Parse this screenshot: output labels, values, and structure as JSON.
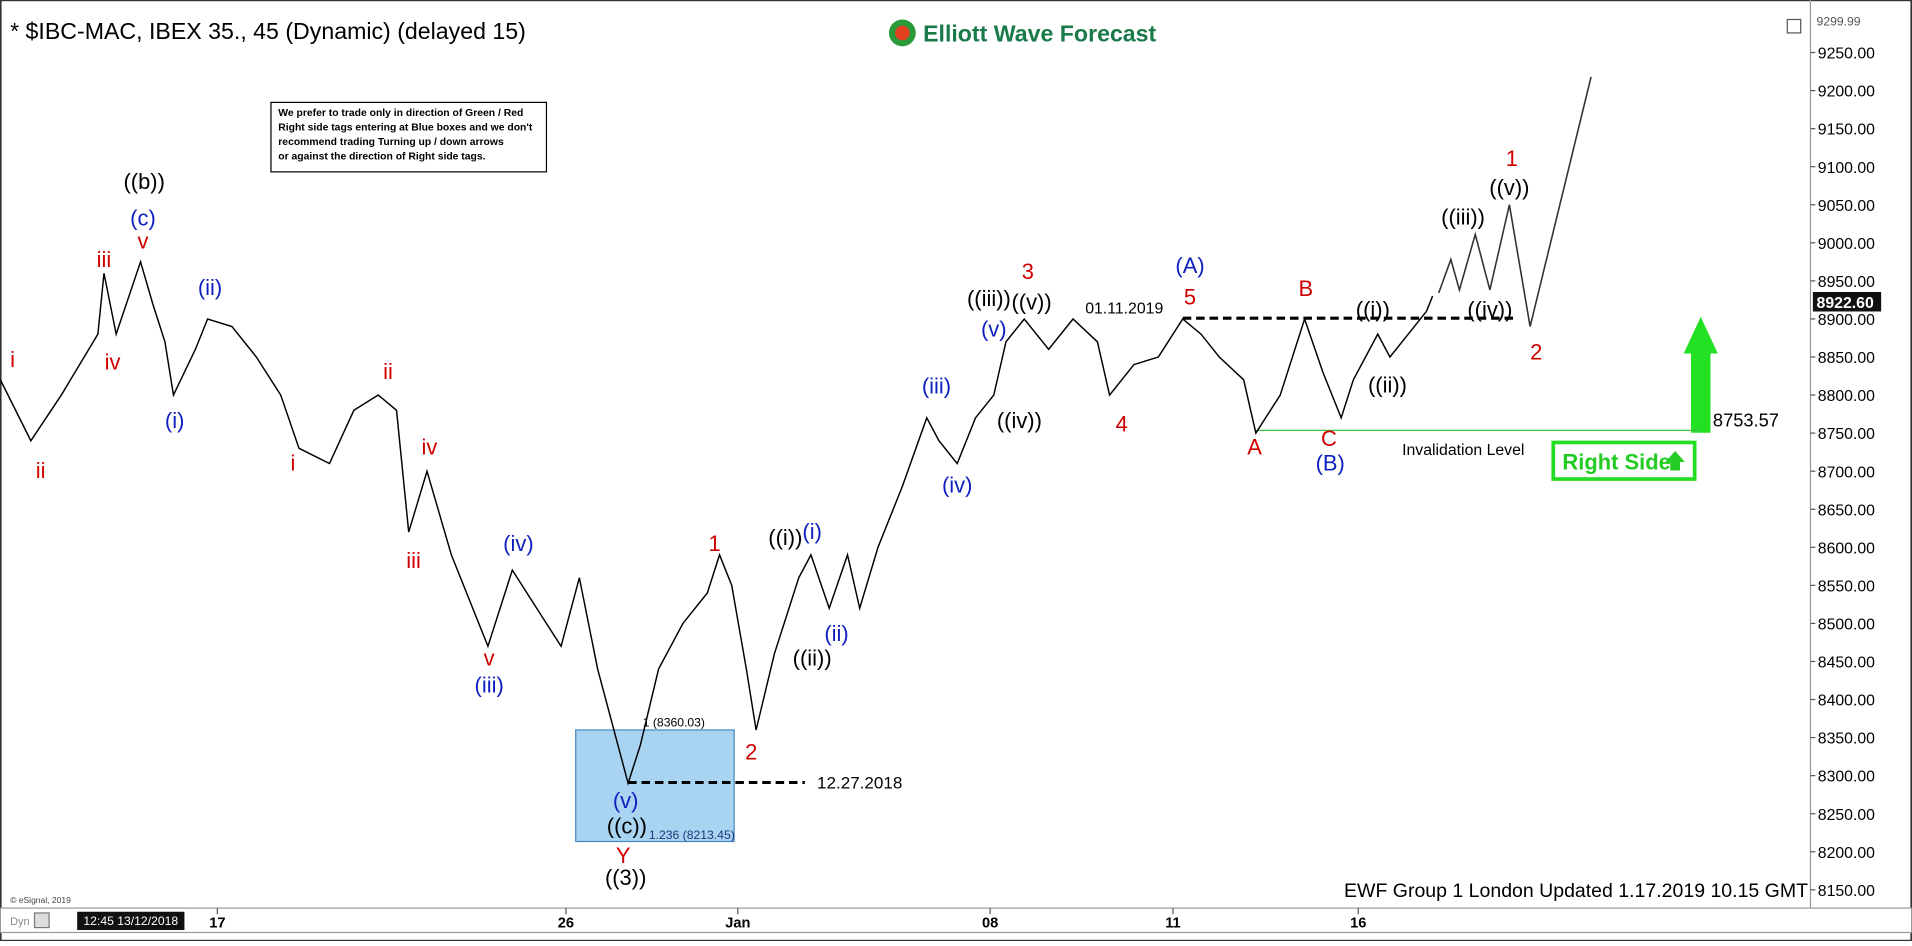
{
  "header": {
    "title": "* $IBC-MAC, IBEX 35., 45 (Dynamic) (delayed 15)",
    "logo": "Elliott Wave Forecast"
  },
  "note": [
    "We prefer to trade only in direction of Green / Red",
    "Right side tags entering at Blue boxes and we don't",
    "recommend trading Turning up / down arrows",
    "or against the direction of Right side tags."
  ],
  "chart_data": {
    "type": "line",
    "xlim": [
      0,
      148.5
    ],
    "ylim": [
      8126,
      9319
    ],
    "xticks": [
      {
        "value": 17.8,
        "label": "17"
      },
      {
        "value": 46.4,
        "label": "26"
      },
      {
        "value": 60.5,
        "label": "Jan"
      },
      {
        "value": 81.2,
        "label": "08"
      },
      {
        "value": 96.2,
        "label": "11"
      },
      {
        "value": 111.4,
        "label": "16"
      }
    ],
    "yticks": [
      {
        "value": 8150,
        "label": "8150.00"
      },
      {
        "value": 8200,
        "label": "8200.00"
      },
      {
        "value": 8250,
        "label": "8250.00"
      },
      {
        "value": 8300,
        "label": "8300.00"
      },
      {
        "value": 8350,
        "label": "8350.00"
      },
      {
        "value": 8400,
        "label": "8400.00"
      },
      {
        "value": 8450,
        "label": "8450.00"
      },
      {
        "value": 8500,
        "label": "8500.00"
      },
      {
        "value": 8550,
        "label": "8550.00"
      },
      {
        "value": 8600,
        "label": "8600.00"
      },
      {
        "value": 8650,
        "label": "8650.00"
      },
      {
        "value": 8700,
        "label": "8700.00"
      },
      {
        "value": 8750,
        "label": "8750.00"
      },
      {
        "value": 8800,
        "label": "8800.00"
      },
      {
        "value": 8850,
        "label": "8850.00"
      },
      {
        "value": 8900,
        "label": "8900.00"
      },
      {
        "value": 8950,
        "label": "8950.00"
      },
      {
        "value": 9000,
        "label": "9000.00"
      },
      {
        "value": 9050,
        "label": "9050.00"
      },
      {
        "value": 9100,
        "label": "9100.00"
      },
      {
        "value": 9150,
        "label": "9150.00"
      },
      {
        "value": 9200,
        "label": "9200.00"
      },
      {
        "value": 9250,
        "label": "9250.00"
      }
    ],
    "top_label": "9299.99",
    "last_price": {
      "value": 8922.6,
      "label": "8922.60"
    },
    "series": [
      {
        "name": "IBEX 35",
        "color": "#000000",
        "x": [
          0,
          2.5,
          5,
          8,
          8.5,
          9.5,
          11.5,
          12.5,
          13.5,
          14.2,
          16,
          17,
          19,
          21,
          23,
          24.5,
          27,
          29,
          31,
          32.5,
          33.5,
          35,
          37,
          40,
          42,
          44,
          46,
          47.5,
          49,
          51.5,
          52.5,
          54,
          56,
          58,
          59,
          60,
          61.2,
          62,
          63.5,
          65.5,
          66.5,
          68,
          69.5,
          70.5,
          72,
          74,
          76,
          77,
          78.5,
          80,
          81.5,
          82.5,
          84,
          86,
          88,
          90,
          91,
          93,
          95,
          97,
          98.5,
          100,
          102,
          103,
          105,
          107,
          108.5,
          110,
          111,
          113,
          114,
          116,
          117,
          117.5
        ],
        "values": [
          8820,
          8740,
          8800,
          8880,
          8960,
          8880,
          8975,
          8920,
          8870,
          8800,
          8860,
          8900,
          8890,
          8850,
          8800,
          8730,
          8710,
          8780,
          8800,
          8780,
          8620,
          8700,
          8590,
          8470,
          8570,
          8520,
          8470,
          8560,
          8440,
          8290,
          8340,
          8440,
          8500,
          8540,
          8590,
          8550,
          8440,
          8360,
          8460,
          8560,
          8590,
          8520,
          8590,
          8520,
          8600,
          8680,
          8770,
          8740,
          8710,
          8770,
          8800,
          8870,
          8900,
          8860,
          8900,
          8870,
          8800,
          8840,
          8850,
          8900,
          8880,
          8850,
          8820,
          8750,
          8800,
          8900,
          8830,
          8770,
          8820,
          8880,
          8850,
          8890,
          8910,
          8930
        ]
      },
      {
        "name": "Projection",
        "color": "#333333",
        "x": [
          118,
          119,
          119.7,
          121,
          122.2,
          123.8,
          125.5,
          130.5
        ],
        "values": [
          8934,
          8978,
          8938,
          9011,
          8938,
          9050,
          8890,
          9218
        ]
      }
    ],
    "box": {
      "x": [
        47.2,
        60.2
      ],
      "values": [
        8360.03,
        8213.45
      ],
      "top_label": "1 (8360.03)",
      "bottom_label": "1.236 (8213.45)",
      "color": "#a8d4f2"
    },
    "levels": [
      {
        "x": [
          51.5,
          66
        ],
        "value": 8291,
        "label": "12.27.2018"
      },
      {
        "x": [
          97,
          124.5
        ],
        "value": 8901,
        "label": "01.11.2019"
      },
      {
        "x": [
          103,
          139.5
        ],
        "value": 8753.57,
        "label": "8753.57",
        "note": "Invalidation Level"
      }
    ],
    "wave_labels": [
      {
        "text": "i",
        "color": "#d00000"
      },
      {
        "text": "ii",
        "color": "#d00000"
      },
      {
        "text": "iii",
        "color": "#d00000"
      },
      {
        "text": "iv",
        "color": "#d00000"
      },
      {
        "text": "v",
        "color": "#d00000"
      },
      {
        "text": "ii",
        "color": "#d00000"
      },
      {
        "text": "i",
        "color": "#d00000"
      },
      {
        "text": "iv",
        "color": "#d00000"
      },
      {
        "text": "iii",
        "color": "#d00000"
      },
      {
        "text": "v",
        "color": "#d00000"
      },
      {
        "text": "1",
        "color": "#d00000"
      },
      {
        "text": "2",
        "color": "#d00000"
      },
      {
        "text": "Y",
        "color": "#d00000"
      },
      {
        "text": "3",
        "color": "#d00000"
      },
      {
        "text": "4",
        "color": "#d00000"
      },
      {
        "text": "5",
        "color": "#d00000"
      },
      {
        "text": "A",
        "color": "#d00000"
      },
      {
        "text": "B",
        "color": "#d00000"
      },
      {
        "text": "C",
        "color": "#d00000"
      },
      {
        "text": "1",
        "color": "#d00000"
      },
      {
        "text": "2",
        "color": "#d00000"
      },
      {
        "text": "(c)",
        "color": "#1020c0"
      },
      {
        "text": "(ii)",
        "color": "#1020c0"
      },
      {
        "text": "(i)",
        "color": "#1020c0"
      },
      {
        "text": "(iv)",
        "color": "#1020c0"
      },
      {
        "text": "(iii)",
        "color": "#1020c0"
      },
      {
        "text": "(v)",
        "color": "#1020c0"
      },
      {
        "text": "(i)",
        "color": "#1020c0"
      },
      {
        "text": "(ii)",
        "color": "#1020c0"
      },
      {
        "text": "(iii)",
        "color": "#1020c0"
      },
      {
        "text": "(iv)",
        "color": "#1020c0"
      },
      {
        "text": "(v)",
        "color": "#1020c0"
      },
      {
        "text": "(A)",
        "color": "#1020c0"
      },
      {
        "text": "(B)",
        "color": "#1020c0"
      },
      {
        "text": "((b))",
        "color": "#000000"
      },
      {
        "text": "((c))",
        "color": "#000000"
      },
      {
        "text": "((3))",
        "color": "#000000"
      },
      {
        "text": "((i))",
        "color": "#000000"
      },
      {
        "text": "((ii))",
        "color": "#000000"
      },
      {
        "text": "((iii))",
        "color": "#000000"
      },
      {
        "text": "((v))",
        "color": "#000000"
      },
      {
        "text": "((iv))",
        "color": "#000000"
      },
      {
        "text": "((i))",
        "color": "#000000"
      },
      {
        "text": "((ii))",
        "color": "#000000"
      },
      {
        "text": "((iii))",
        "color": "#000000"
      },
      {
        "text": "((v))",
        "color": "#000000"
      },
      {
        "text": "((iv))",
        "color": "#000000"
      }
    ],
    "tag": "Right Side"
  },
  "footer": {
    "update": "EWF Group 1 London Updated 1.17.2019 10.15 GMT",
    "copyright": "© eSignal, 2019",
    "timestamp": "12:45 13/12/2018",
    "mode": "Dyn"
  }
}
